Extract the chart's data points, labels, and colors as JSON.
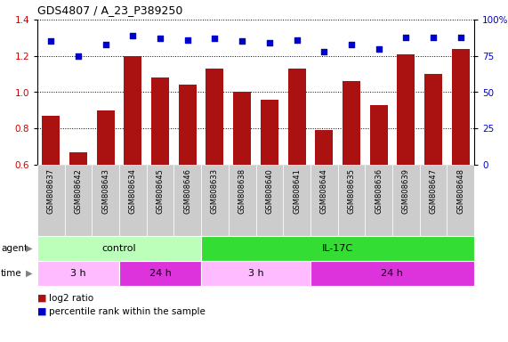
{
  "title": "GDS4807 / A_23_P389250",
  "samples": [
    "GSM808637",
    "GSM808642",
    "GSM808643",
    "GSM808634",
    "GSM808645",
    "GSM808646",
    "GSM808633",
    "GSM808638",
    "GSM808640",
    "GSM808641",
    "GSM808644",
    "GSM808635",
    "GSM808636",
    "GSM808639",
    "GSM808647",
    "GSM808648"
  ],
  "bar_values": [
    0.87,
    0.67,
    0.9,
    1.2,
    1.08,
    1.04,
    1.13,
    1.0,
    0.96,
    1.13,
    0.79,
    1.06,
    0.93,
    1.21,
    1.1,
    1.24
  ],
  "dot_values": [
    85,
    75,
    83,
    89,
    87,
    86,
    87,
    85,
    84,
    86,
    78,
    83,
    80,
    88,
    88,
    88
  ],
  "ylim_left": [
    0.6,
    1.4
  ],
  "ylim_right": [
    0,
    100
  ],
  "yticks_left": [
    0.6,
    0.8,
    1.0,
    1.2,
    1.4
  ],
  "yticks_right": [
    0,
    25,
    50,
    75,
    100
  ],
  "bar_color": "#aa1111",
  "dot_color": "#0000cc",
  "agent_groups": [
    {
      "label": "control",
      "start": 0,
      "end": 6,
      "color": "#bbffbb"
    },
    {
      "label": "IL-17C",
      "start": 6,
      "end": 16,
      "color": "#33dd33"
    }
  ],
  "time_groups": [
    {
      "label": "3 h",
      "start": 0,
      "end": 3,
      "color": "#ffbbff"
    },
    {
      "label": "24 h",
      "start": 3,
      "end": 6,
      "color": "#dd33dd"
    },
    {
      "label": "3 h",
      "start": 6,
      "end": 10,
      "color": "#ffbbff"
    },
    {
      "label": "24 h",
      "start": 10,
      "end": 16,
      "color": "#dd33dd"
    }
  ],
  "legend_bar_label": "log2 ratio",
  "legend_dot_label": "percentile rank within the sample",
  "background_color": "#ffffff",
  "tick_label_color_left": "#cc0000",
  "tick_label_color_right": "#0000cc",
  "plot_bg_color": "#ffffff",
  "xtick_bg_color": "#cccccc"
}
